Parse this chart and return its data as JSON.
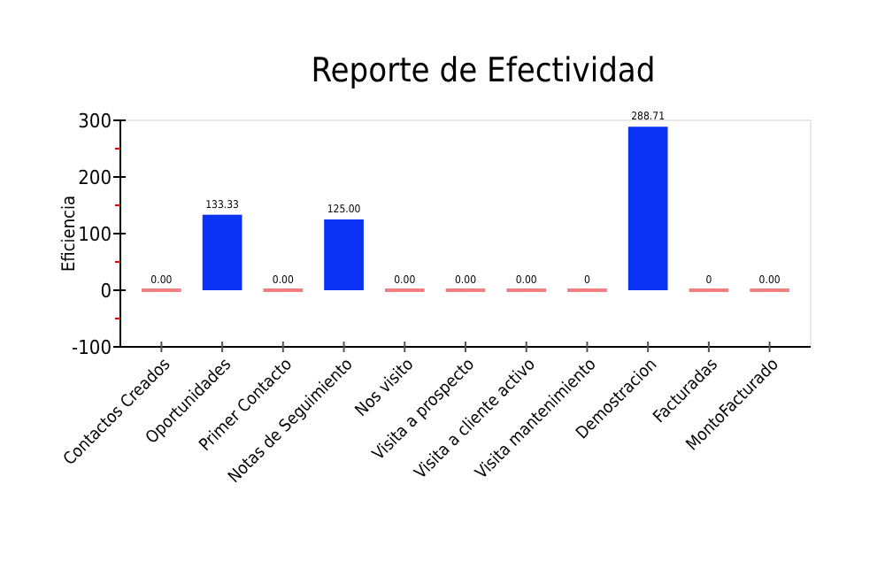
{
  "chart_data": {
    "type": "bar",
    "title": "Reporte de Efectividad",
    "ylabel": "Eficiencia",
    "categories": [
      "Contactos Creados",
      "Oportunidades",
      "Primer Contacto",
      "Notas de Seguimiento",
      "Nos visito",
      "Visita a prospecto",
      "Visita a cliente activo",
      "Visita mantenimiento",
      "Demostracion",
      "Facturadas",
      "MontoFacturado"
    ],
    "values": [
      0,
      133.33,
      0,
      125,
      0,
      0,
      0,
      0,
      288.71,
      0,
      0
    ],
    "value_labels": [
      "0.00",
      "133.33",
      "0.00",
      "125.00",
      "0.00",
      "0.00",
      "0.00",
      "0",
      "288.71",
      "0",
      "0.00"
    ],
    "colors": [
      "#f08080",
      "#0a32f5",
      "#f08080",
      "#0a32f5",
      "#f08080",
      "#f08080",
      "#f08080",
      "#f08080",
      "#0a32f5",
      "#f08080",
      "#f08080"
    ],
    "ylim": [
      -100,
      300
    ],
    "yticks": [
      -100,
      {
        "value": -50,
        "label": null
      },
      0,
      {
        "value": 50,
        "label": null
      },
      100,
      {
        "value": 150,
        "label": null
      },
      200,
      {
        "value": 250,
        "label": null
      },
      300
    ],
    "grid": false
  }
}
